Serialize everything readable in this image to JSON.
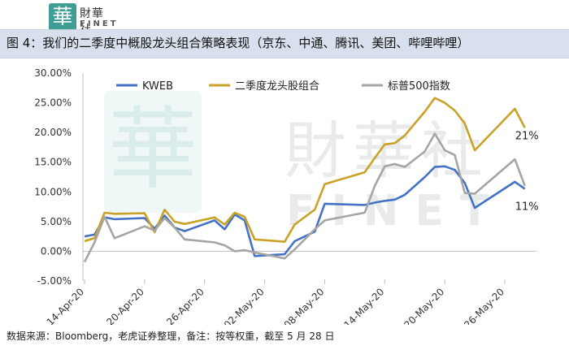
{
  "logo": {
    "seal_glyph": "華",
    "name_cn": "財華社",
    "name_en": "FINET"
  },
  "watermark": {
    "seal_glyph": "華",
    "name_cn": "財華社",
    "name_en": "FINET"
  },
  "header": {
    "title": "图 4：我们的二季度中概股龙头组合策略表现（京东、中通、腾讯、美团、哔哩哔哩）"
  },
  "footer": {
    "source": "数据来源：Bloomberg，老虎证券整理，备注：按等权重，截至 5 月 28 日"
  },
  "chart_data": {
    "type": "line",
    "title": "图 4：我们的二季度中概股龙头组合策略表现（京东、中通、腾讯、美团、哔哩哔哩）",
    "xlabel": "",
    "ylabel": "",
    "ylim": [
      -0.05,
      0.3
    ],
    "y_ticks": [
      "30.00%",
      "25.00%",
      "20.00%",
      "15.00%",
      "10.00%",
      "5.00%",
      "0.00%",
      "-5.00%"
    ],
    "y_tick_values": [
      0.3,
      0.25,
      0.2,
      0.15,
      0.1,
      0.05,
      0.0,
      -0.05
    ],
    "x_ticks": [
      "14-Apr-20",
      "20-Apr-20",
      "26-Apr-20",
      "02-May-20",
      "08-May-20",
      "14-May-20",
      "20-May-20",
      "26-May-20"
    ],
    "x_tick_days": [
      0,
      6,
      12,
      18,
      24,
      30,
      36,
      42
    ],
    "legend": {
      "position": "top"
    },
    "grid": false,
    "series": [
      {
        "name": "KWEB",
        "color": "#4472c4",
        "points": [
          [
            0,
            0.025
          ],
          [
            1,
            0.028
          ],
          [
            2,
            0.057
          ],
          [
            3,
            0.054
          ],
          [
            6,
            0.056
          ],
          [
            7,
            0.038
          ],
          [
            8,
            0.06
          ],
          [
            9,
            0.04
          ],
          [
            10,
            0.034
          ],
          [
            13,
            0.052
          ],
          [
            14,
            0.037
          ],
          [
            15,
            0.062
          ],
          [
            16,
            0.052
          ],
          [
            17,
            -0.008
          ],
          [
            20,
            -0.005
          ],
          [
            21,
            0.017
          ],
          [
            23,
            0.033
          ],
          [
            24,
            0.08
          ],
          [
            28,
            0.078
          ],
          [
            29,
            0.082
          ],
          [
            30,
            0.085
          ],
          [
            31,
            0.087
          ],
          [
            32,
            0.095
          ],
          [
            34,
            0.125
          ],
          [
            35,
            0.142
          ],
          [
            36,
            0.143
          ],
          [
            37,
            0.137
          ],
          [
            38,
            0.115
          ],
          [
            39,
            0.073
          ],
          [
            43,
            0.117
          ],
          [
            44,
            0.105
          ]
        ],
        "end_label": "11%"
      },
      {
        "name": "二季度龙头股组合",
        "color": "#c9a227",
        "points": [
          [
            0,
            0.017
          ],
          [
            1,
            0.022
          ],
          [
            2,
            0.065
          ],
          [
            3,
            0.063
          ],
          [
            6,
            0.064
          ],
          [
            7,
            0.032
          ],
          [
            8,
            0.07
          ],
          [
            9,
            0.05
          ],
          [
            10,
            0.046
          ],
          [
            13,
            0.057
          ],
          [
            14,
            0.045
          ],
          [
            15,
            0.065
          ],
          [
            16,
            0.058
          ],
          [
            17,
            0.02
          ],
          [
            20,
            0.016
          ],
          [
            21,
            0.045
          ],
          [
            23,
            0.07
          ],
          [
            24,
            0.113
          ],
          [
            28,
            0.133
          ],
          [
            29,
            0.157
          ],
          [
            30,
            0.18
          ],
          [
            31,
            0.182
          ],
          [
            32,
            0.195
          ],
          [
            34,
            0.235
          ],
          [
            35,
            0.258
          ],
          [
            36,
            0.25
          ],
          [
            37,
            0.237
          ],
          [
            38,
            0.215
          ],
          [
            39,
            0.17
          ],
          [
            43,
            0.24
          ],
          [
            44,
            0.208
          ]
        ],
        "end_label": "21%"
      },
      {
        "name": "标普500指数",
        "color": "#a5a5a5",
        "points": [
          [
            0,
            -0.018
          ],
          [
            1,
            0.015
          ],
          [
            2,
            0.058
          ],
          [
            3,
            0.022
          ],
          [
            6,
            0.042
          ],
          [
            7,
            0.035
          ],
          [
            8,
            0.056
          ],
          [
            9,
            0.04
          ],
          [
            10,
            0.02
          ],
          [
            13,
            0.015
          ],
          [
            14,
            0.01
          ],
          [
            15,
            0.0
          ],
          [
            16,
            0.002
          ],
          [
            17,
            -0.002
          ],
          [
            20,
            -0.012
          ],
          [
            21,
            0.003
          ],
          [
            23,
            0.037
          ],
          [
            24,
            0.052
          ],
          [
            28,
            0.065
          ],
          [
            29,
            0.11
          ],
          [
            30,
            0.143
          ],
          [
            31,
            0.147
          ],
          [
            32,
            0.142
          ],
          [
            34,
            0.168
          ],
          [
            35,
            0.198
          ],
          [
            36,
            0.17
          ],
          [
            37,
            0.162
          ],
          [
            38,
            0.098
          ],
          [
            39,
            0.097
          ],
          [
            43,
            0.155
          ],
          [
            44,
            0.11
          ]
        ]
      }
    ]
  }
}
